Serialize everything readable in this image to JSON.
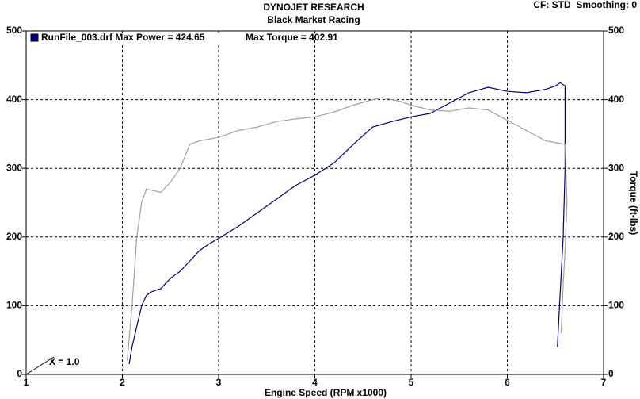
{
  "chart_data": {
    "type": "line",
    "title": "DYNOJET RESEARCH",
    "subtitle": "Black Market Racing",
    "corner_note": "CF: STD  Smoothing: 0",
    "annotation": "X = 1.0",
    "x_label": "Engine Speed (RPM x1000)",
    "y2_label": "Torque (ft-lbs)",
    "xlim": [
      1,
      7
    ],
    "xticks": [
      1,
      2,
      3,
      4,
      5,
      6,
      7
    ],
    "ylim": [
      0,
      500
    ],
    "yticks": [
      0,
      100,
      200,
      300,
      400,
      500
    ],
    "y2lim": [
      0,
      500
    ],
    "y2ticks": [
      0,
      100,
      200,
      300,
      400,
      500
    ],
    "grid": true,
    "series": [
      {
        "name": "RunFile_003.drf Max Power = 424.65",
        "color": "#00007f",
        "x": [
          2.07,
          2.1,
          2.15,
          2.2,
          2.25,
          2.3,
          2.4,
          2.5,
          2.6,
          2.7,
          2.8,
          2.9,
          3.0,
          3.2,
          3.4,
          3.6,
          3.8,
          4.0,
          4.2,
          4.4,
          4.6,
          4.8,
          5.0,
          5.2,
          5.4,
          5.6,
          5.8,
          6.0,
          6.2,
          6.4,
          6.5,
          6.55,
          6.6,
          6.6,
          6.58,
          6.55,
          6.52
        ],
        "values": [
          15,
          40,
          70,
          100,
          115,
          120,
          125,
          140,
          150,
          165,
          180,
          190,
          198,
          215,
          235,
          255,
          275,
          290,
          308,
          335,
          360,
          368,
          375,
          380,
          395,
          410,
          418,
          412,
          410,
          415,
          420,
          424.65,
          420,
          300,
          200,
          120,
          40
        ]
      },
      {
        "name": "Max Torque = 402.91",
        "color": "#a0a0a0",
        "axis": "y2",
        "x": [
          2.05,
          2.1,
          2.15,
          2.2,
          2.25,
          2.4,
          2.5,
          2.6,
          2.7,
          2.8,
          3.0,
          3.2,
          3.4,
          3.6,
          3.8,
          4.0,
          4.2,
          4.4,
          4.6,
          4.7,
          4.9,
          5.0,
          5.2,
          5.4,
          5.6,
          5.8,
          6.0,
          6.2,
          6.4,
          6.6,
          6.62,
          6.6,
          6.58,
          6.56
        ],
        "values": [
          20,
          100,
          200,
          250,
          270,
          265,
          280,
          300,
          335,
          340,
          345,
          355,
          360,
          368,
          372,
          375,
          382,
          392,
          400,
          402.91,
          397,
          392,
          385,
          383,
          388,
          385,
          370,
          355,
          340,
          335,
          250,
          180,
          130,
          60
        ]
      }
    ]
  }
}
